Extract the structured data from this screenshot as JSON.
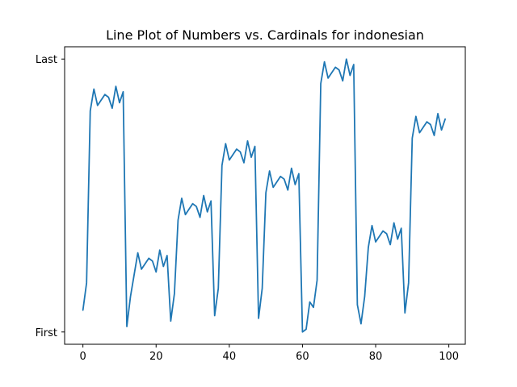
{
  "chart_data": {
    "type": "line",
    "title": "Line Plot of Numbers vs. Cardinals for indonesian",
    "xlabel": "",
    "ylabel": "",
    "xlim": [
      -5,
      104.5
    ],
    "ylim": [
      -0.045,
      1.045
    ],
    "x_ticks": [
      0,
      20,
      40,
      60,
      80,
      100
    ],
    "x_tick_labels": [
      "0",
      "20",
      "40",
      "60",
      "80",
      "100"
    ],
    "y_ticks": [
      0,
      1
    ],
    "y_tick_labels": [
      "First",
      "Last"
    ],
    "grid": false,
    "legend": "none",
    "color": "#1f77b4",
    "series": [
      {
        "x": [
          0,
          1,
          2,
          3,
          4,
          5,
          6,
          7,
          8,
          9,
          10,
          11,
          12,
          13,
          14,
          15,
          16,
          17,
          18,
          19,
          20,
          21,
          22,
          23,
          24,
          25,
          26,
          27,
          28,
          29,
          30,
          31,
          32,
          33,
          34,
          35,
          36,
          37,
          38,
          39,
          40,
          41,
          42,
          43,
          44,
          45,
          46,
          47,
          48,
          49,
          50,
          51,
          52,
          53,
          54,
          55,
          56,
          57,
          58,
          59,
          60,
          61,
          62,
          63,
          64,
          65,
          66,
          67,
          68,
          69,
          70,
          71,
          72,
          73,
          74,
          75,
          76,
          77,
          78,
          79,
          80,
          81,
          82,
          83,
          84,
          85,
          86,
          87,
          88,
          89,
          90,
          91,
          92,
          93,
          94,
          95,
          96,
          97,
          98,
          99
        ],
        "y": [
          0.08,
          0.18,
          0.81,
          0.89,
          0.83,
          0.85,
          0.87,
          0.86,
          0.82,
          0.9,
          0.84,
          0.88,
          0.02,
          0.13,
          0.21,
          0.29,
          0.23,
          0.25,
          0.27,
          0.26,
          0.22,
          0.3,
          0.24,
          0.28,
          0.04,
          0.14,
          0.41,
          0.49,
          0.43,
          0.45,
          0.47,
          0.46,
          0.42,
          0.5,
          0.44,
          0.48,
          0.06,
          0.16,
          0.61,
          0.69,
          0.63,
          0.65,
          0.67,
          0.66,
          0.62,
          0.7,
          0.64,
          0.68,
          0.05,
          0.16,
          0.51,
          0.59,
          0.53,
          0.55,
          0.57,
          0.56,
          0.52,
          0.6,
          0.54,
          0.58,
          0.0,
          0.01,
          0.11,
          0.09,
          0.19,
          0.91,
          0.99,
          0.93,
          0.95,
          0.97,
          0.96,
          0.92,
          1.0,
          0.94,
          0.98,
          0.1,
          0.03,
          0.13,
          0.31,
          0.39,
          0.33,
          0.35,
          0.37,
          0.36,
          0.32,
          0.4,
          0.34,
          0.38,
          0.07,
          0.18,
          0.71,
          0.79,
          0.73,
          0.75,
          0.77,
          0.76,
          0.72,
          0.8,
          0.74,
          0.78
        ]
      }
    ]
  }
}
